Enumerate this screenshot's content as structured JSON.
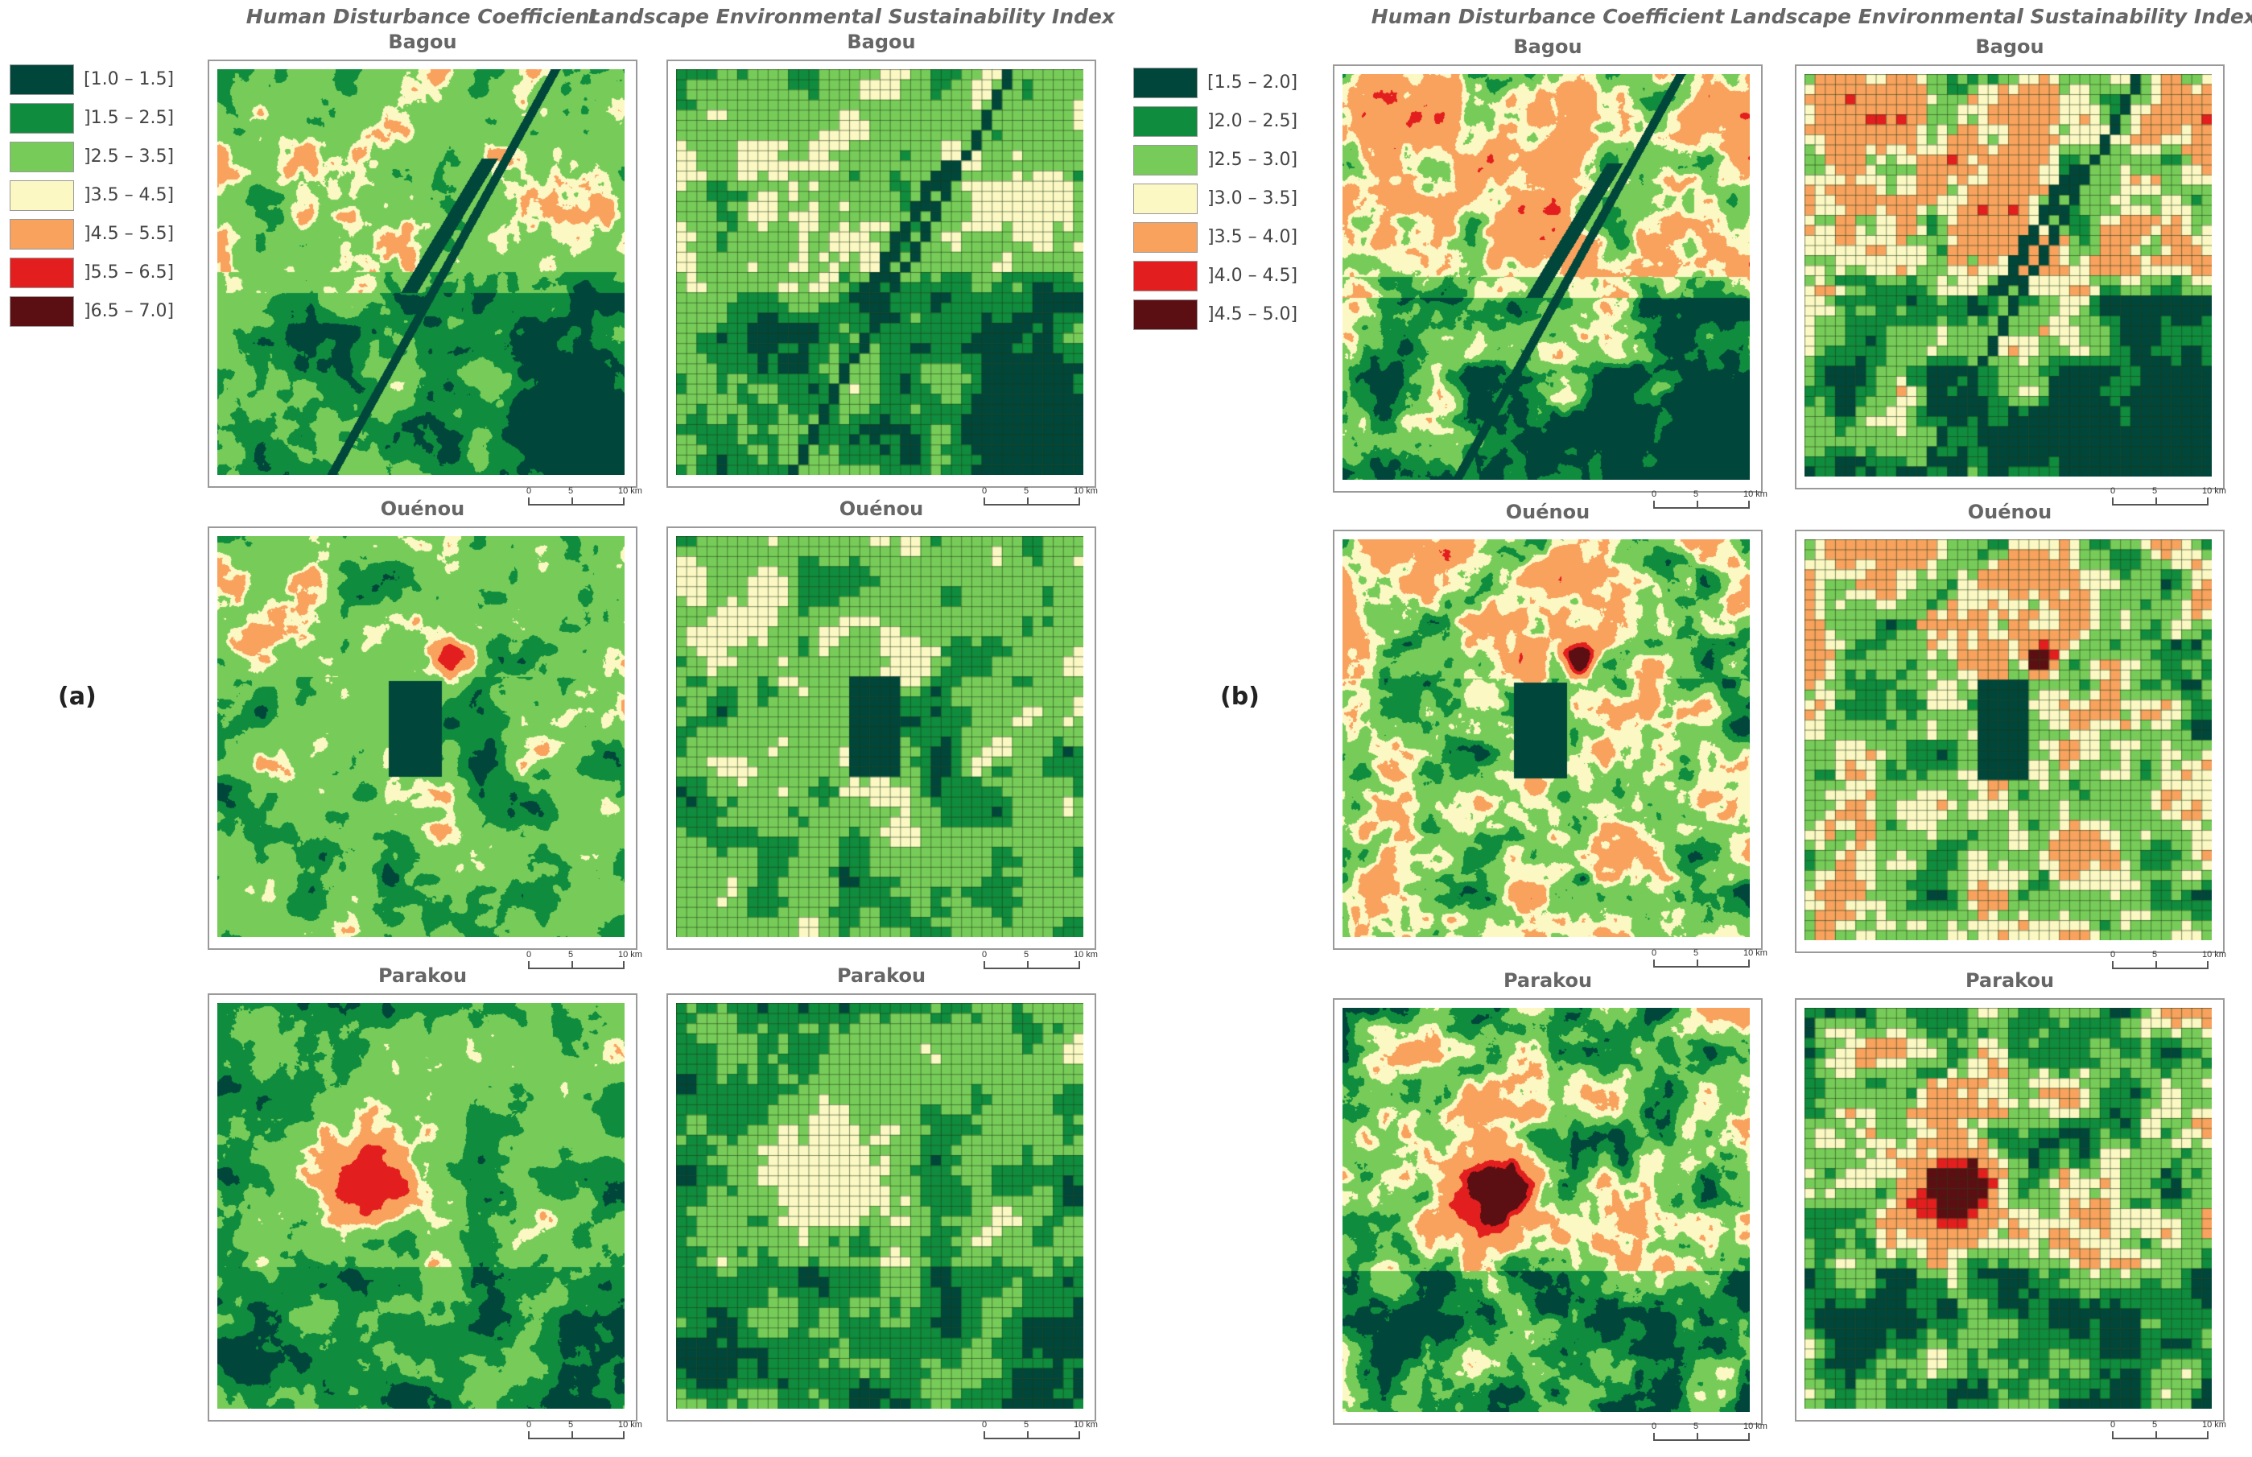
{
  "panels": [
    {
      "id": "a",
      "label": "(a)",
      "column_titles": [
        "Human Disturbance Coefficient",
        "Landscape Environmental Sustainability Index"
      ],
      "legend": [
        {
          "label": "[1.0 – 1.5]",
          "color": "#00463a"
        },
        {
          "label": "]1.5 – 2.5]",
          "color": "#0f8c3e"
        },
        {
          "label": "]2.5 – 3.5]",
          "color": "#77cc59"
        },
        {
          "label": "]3.5 – 4.5]",
          "color": "#fcf8c4"
        },
        {
          "label": "]4.5 – 5.5]",
          "color": "#f8a25e"
        },
        {
          "label": "]5.5 – 6.5]",
          "color": "#e31e1e"
        },
        {
          "label": "]6.5 – 7.0]",
          "color": "#5c0f12"
        }
      ],
      "maps": [
        {
          "title": "Bagou"
        },
        {
          "title": "Bagou"
        },
        {
          "title": "Ouénou"
        },
        {
          "title": "Ouénou"
        },
        {
          "title": "Parakou"
        },
        {
          "title": "Parakou"
        }
      ]
    },
    {
      "id": "b",
      "label": "(b)",
      "column_titles": [
        "Human Disturbance Coefficient",
        "Landscape Environmental Sustainability Index"
      ],
      "legend": [
        {
          "label": "[1.5 – 2.0]",
          "color": "#00463a"
        },
        {
          "label": "]2.0 – 2.5]",
          "color": "#0f8c3e"
        },
        {
          "label": "]2.5 – 3.0]",
          "color": "#77cc59"
        },
        {
          "label": "]3.0 – 3.5]",
          "color": "#fcf8c4"
        },
        {
          "label": "]3.5 – 4.0]",
          "color": "#f8a25e"
        },
        {
          "label": "]4.0 – 4.5]",
          "color": "#e31e1e"
        },
        {
          "label": "]4.5 – 5.0]",
          "color": "#5c0f12"
        }
      ],
      "maps": [
        {
          "title": "Bagou"
        },
        {
          "title": "Bagou"
        },
        {
          "title": "Ouénou"
        },
        {
          "title": "Ouénou"
        },
        {
          "title": "Parakou"
        },
        {
          "title": "Parakou"
        }
      ]
    }
  ],
  "scale_bar": {
    "labels": [
      "0",
      "5",
      "10 km"
    ]
  }
}
